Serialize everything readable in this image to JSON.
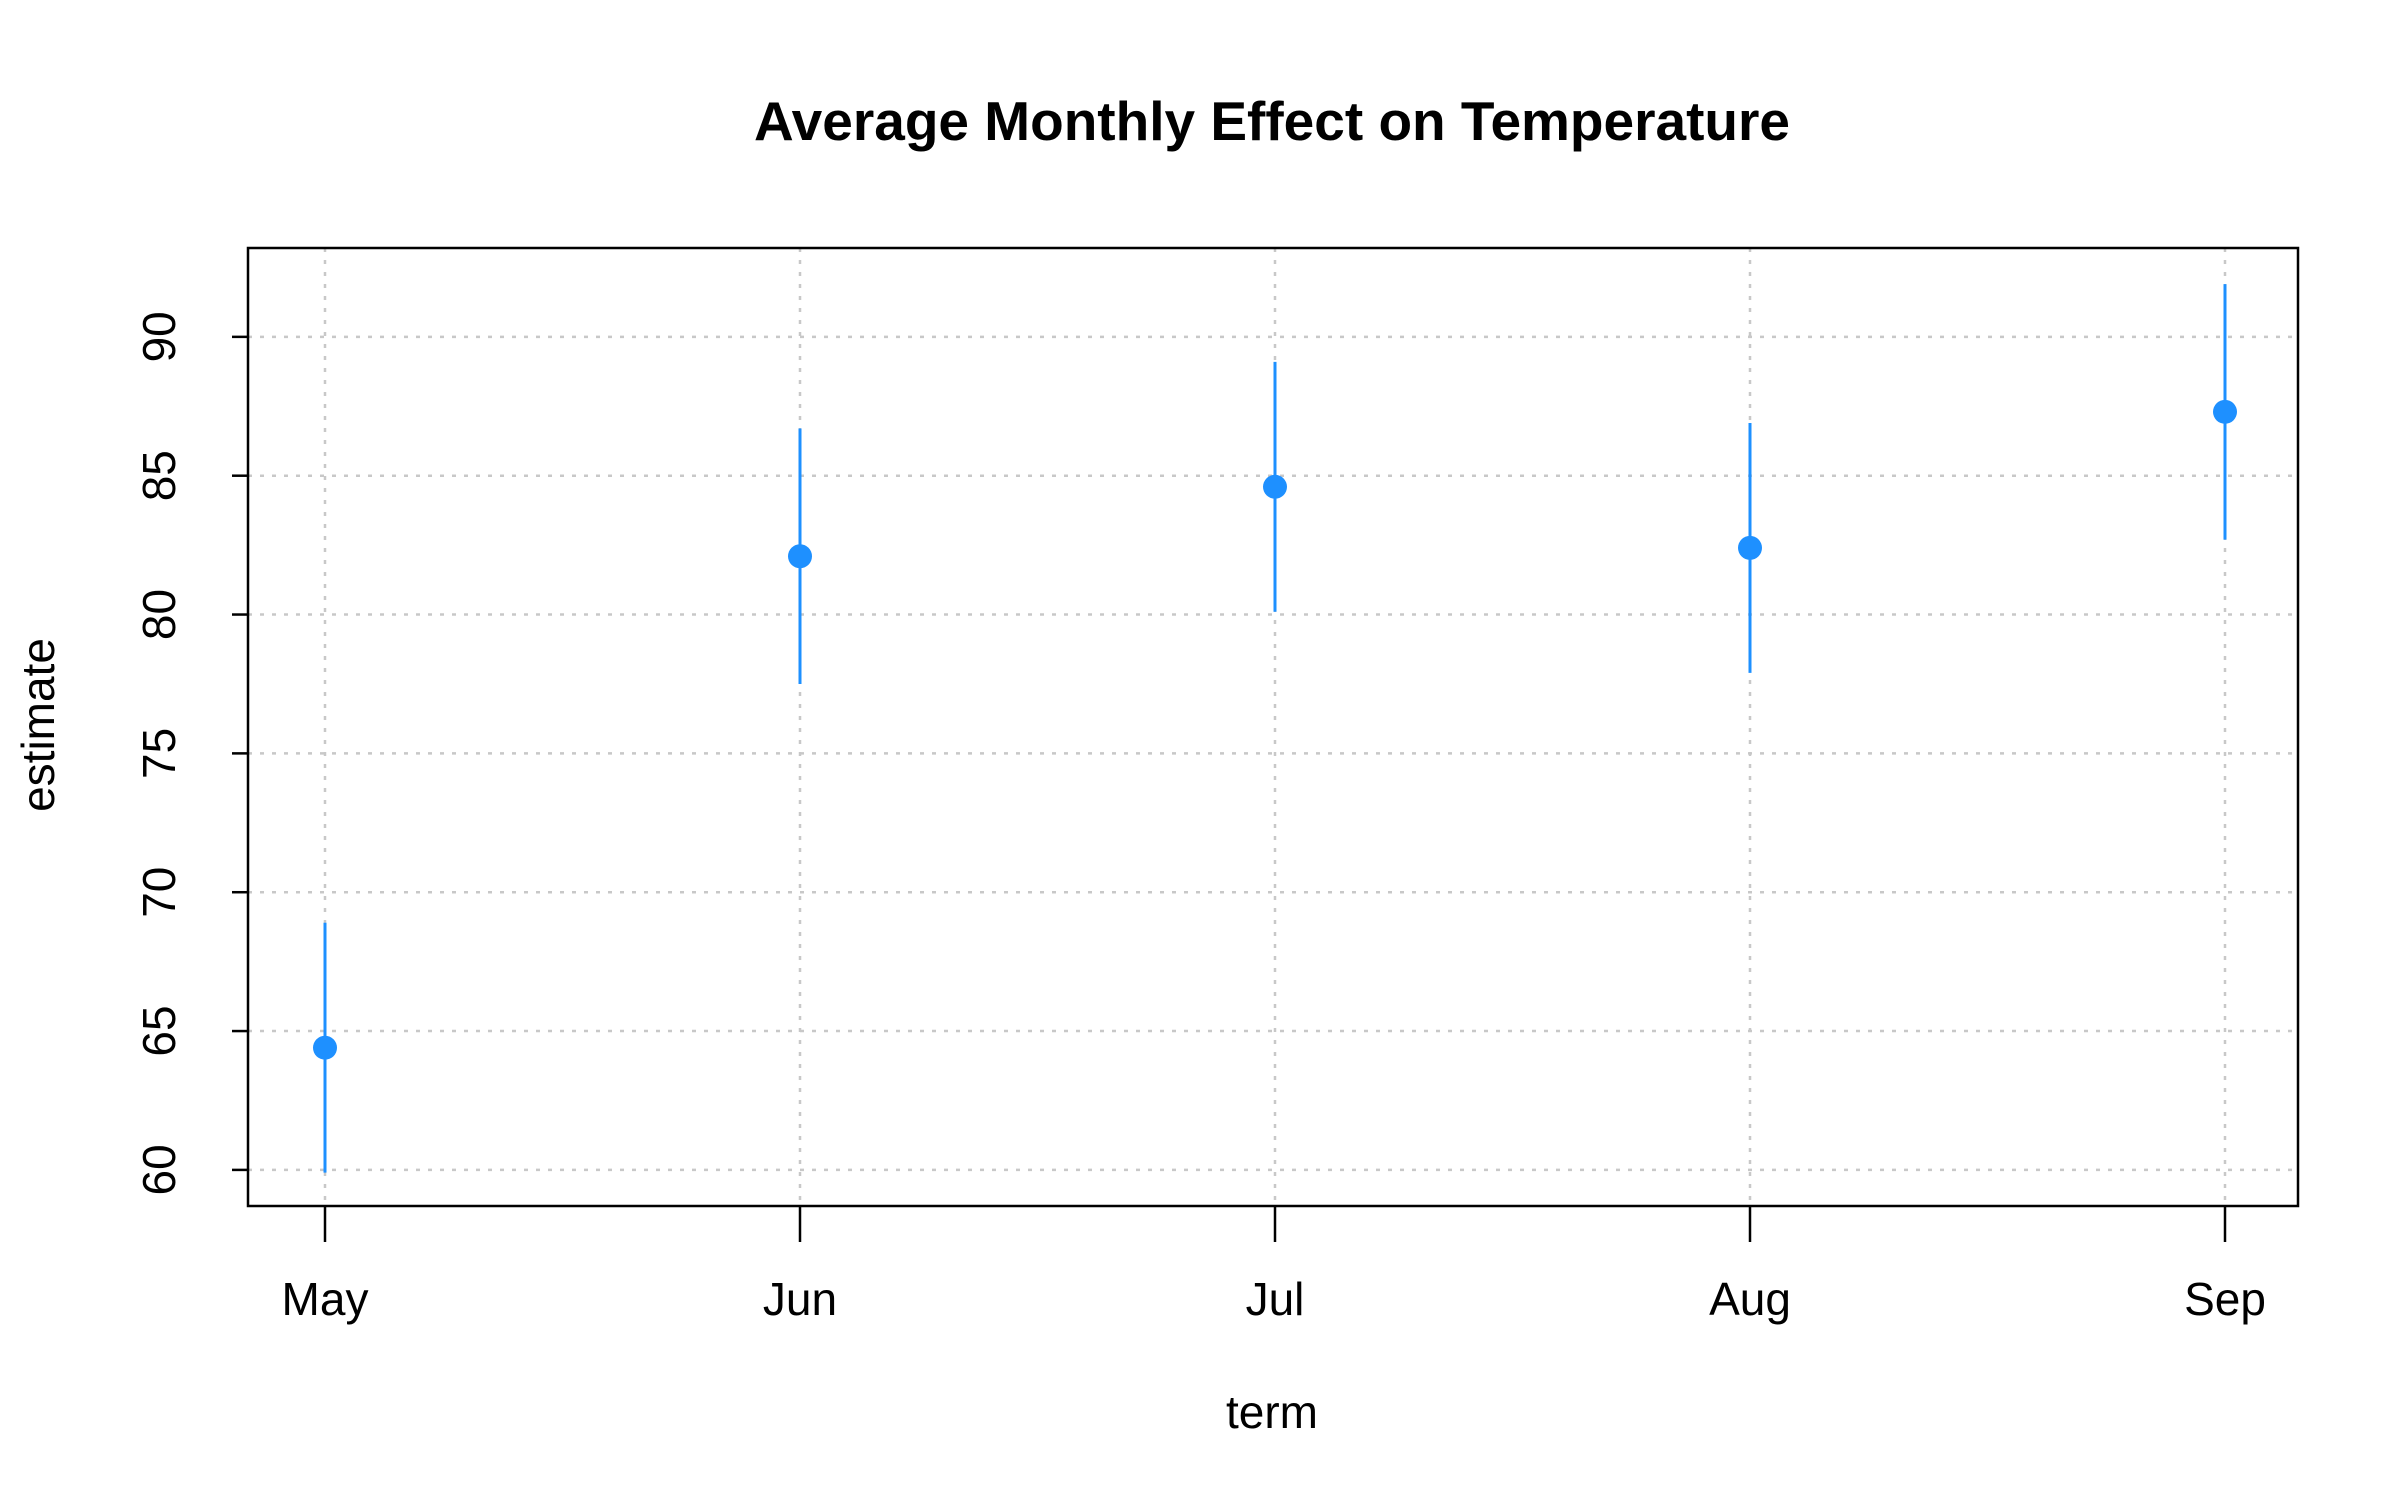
{
  "chart_data": {
    "type": "scatter",
    "title": "Average Monthly Effect on Temperature",
    "xlabel": "term",
    "ylabel": "estimate",
    "categories": [
      "May",
      "Jun",
      "Jul",
      "Aug",
      "Sep"
    ],
    "series": [
      {
        "estimate": [
          64.4,
          82.1,
          84.6,
          82.4,
          87.3
        ],
        "conf_low": [
          59.9,
          77.5,
          80.1,
          77.9,
          82.7
        ],
        "conf_high": [
          68.9,
          86.7,
          89.1,
          86.9,
          91.9
        ]
      }
    ],
    "yticks": [
      60,
      65,
      70,
      75,
      80,
      85,
      90
    ],
    "ylim": [
      58.7,
      93.2
    ],
    "grid": true,
    "color": "#1E90FF"
  }
}
